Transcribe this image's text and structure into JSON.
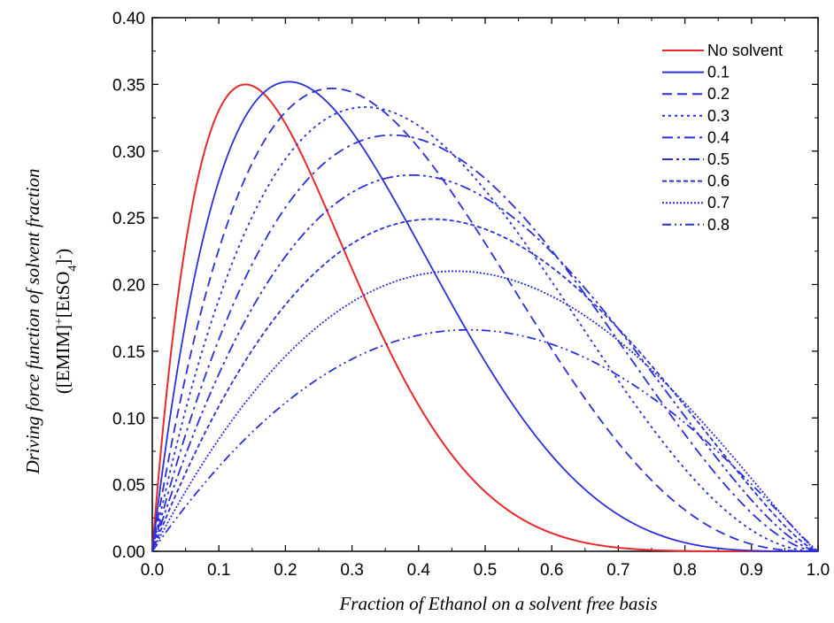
{
  "chart_data": {
    "type": "line",
    "title": "",
    "xlabel": "Fraction of Ethanol on a solvent free basis",
    "ylabel": "Driving force function of solvent fraction",
    "ylabel_sub": {
      "open": "([EMIM]",
      "sup1": "+",
      "mid": "[EtSO",
      "sub": "4",
      "close1": "]",
      "sup2": "-",
      "close2": ")"
    },
    "xlim": [
      0.0,
      1.0
    ],
    "ylim": [
      0.0,
      0.4
    ],
    "x_ticks": [
      "0.0",
      "0.1",
      "0.2",
      "0.3",
      "0.4",
      "0.5",
      "0.6",
      "0.7",
      "0.8",
      "0.9",
      "1.0"
    ],
    "y_ticks": [
      "0.00",
      "0.05",
      "0.10",
      "0.15",
      "0.20",
      "0.25",
      "0.30",
      "0.35",
      "0.40"
    ],
    "grid": false,
    "legend": "top-right",
    "colors": {
      "no_solvent": "#e8282b",
      "solvent": "#2a2fd6"
    },
    "series": [
      {
        "name": "No solvent",
        "peak_x": 0.14,
        "peak_y": 0.35,
        "x_end": 1.0
      },
      {
        "name": "0.1",
        "peak_x": 0.205,
        "peak_y": 0.352,
        "x_end": 1.0
      },
      {
        "name": "0.2",
        "peak_x": 0.27,
        "peak_y": 0.347,
        "x_end": 1.0
      },
      {
        "name": "0.3",
        "peak_x": 0.32,
        "peak_y": 0.333,
        "x_end": 1.0
      },
      {
        "name": "0.4",
        "peak_x": 0.36,
        "peak_y": 0.312,
        "x_end": 1.0
      },
      {
        "name": "0.5",
        "peak_x": 0.39,
        "peak_y": 0.282,
        "x_end": 1.0
      },
      {
        "name": "0.6",
        "peak_x": 0.42,
        "peak_y": 0.249,
        "x_end": 1.0
      },
      {
        "name": "0.7",
        "peak_x": 0.455,
        "peak_y": 0.21,
        "x_end": 1.0
      },
      {
        "name": "0.8",
        "peak_x": 0.475,
        "peak_y": 0.166,
        "x_end": 1.0
      }
    ]
  }
}
